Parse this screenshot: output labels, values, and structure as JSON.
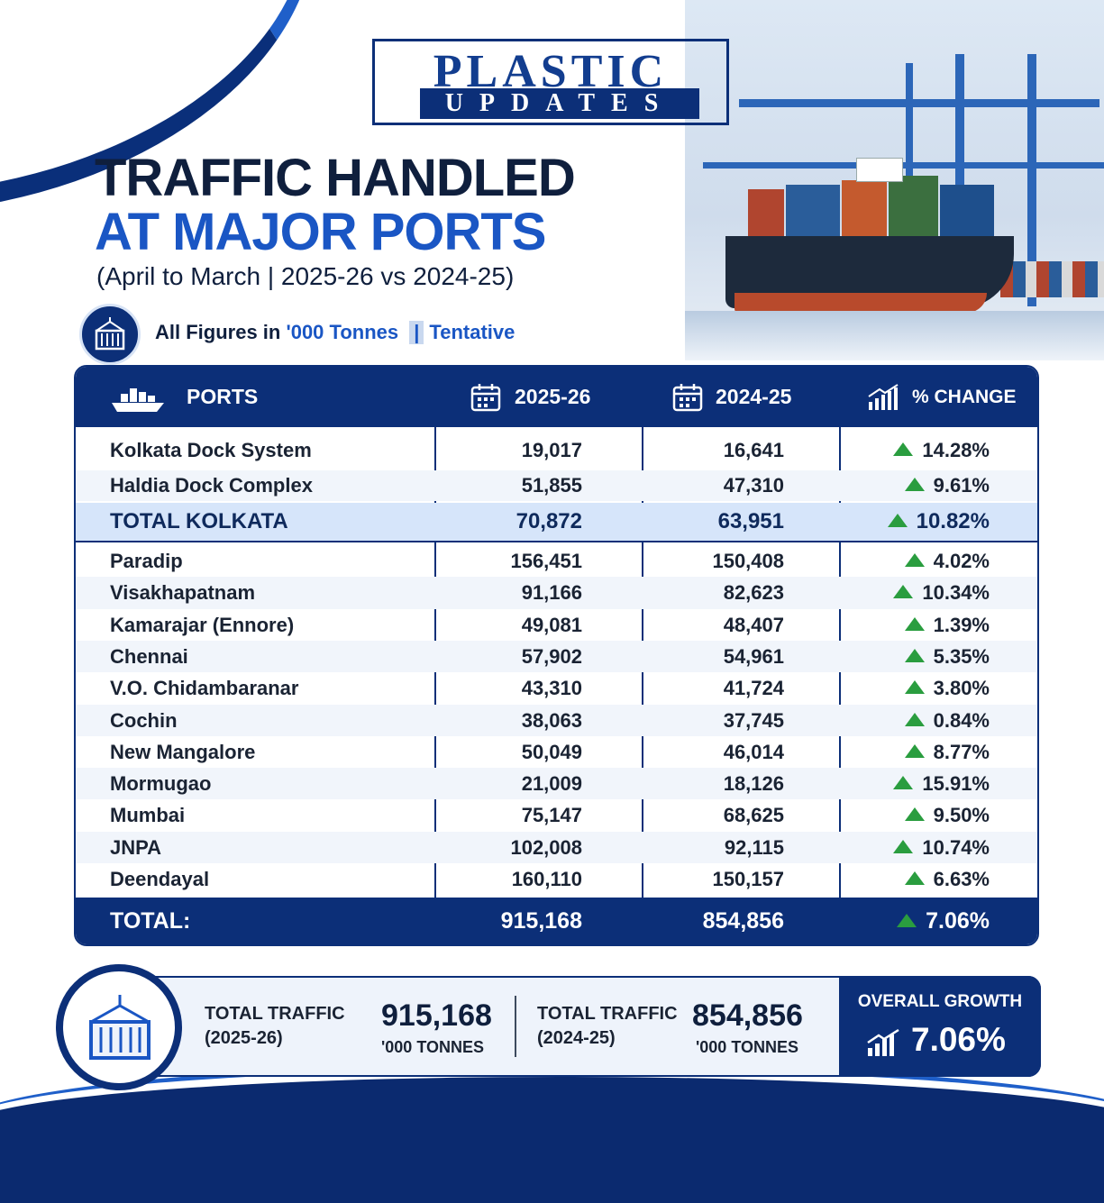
{
  "brand": {
    "top": "PLASTIC",
    "bottom": "UPDATES"
  },
  "header": {
    "title_line1": "TRAFFIC HANDLED",
    "title_line2": "AT MAJOR PORTS",
    "subtitle": "(April to March | 2025-26 vs 2024-25)"
  },
  "note": {
    "prefix": "All Figures in",
    "unit": "'000 Tonnes",
    "separator": "|",
    "status": "Tentative"
  },
  "table": {
    "headers": {
      "ports": "PORTS",
      "y1": "2025-26",
      "y2": "2024-25",
      "change": "% CHANGE"
    },
    "group1": [
      {
        "port": "Kolkata Dock System",
        "y1": "19,017",
        "y2": "16,641",
        "change": "14.28%"
      },
      {
        "port": "Haldia Dock Complex",
        "y1": "51,855",
        "y2": "47,310",
        "change": "9.61%"
      }
    ],
    "subtotal": {
      "port": "TOTAL KOLKATA",
      "y1": "70,872",
      "y2": "63,951",
      "change": "10.82%"
    },
    "group2": [
      {
        "port": "Paradip",
        "y1": "156,451",
        "y2": "150,408",
        "change": "4.02%"
      },
      {
        "port": "Visakhapatnam",
        "y1": "91,166",
        "y2": "82,623",
        "change": "10.34%"
      },
      {
        "port": "Kamarajar (Ennore)",
        "y1": "49,081",
        "y2": "48,407",
        "change": "1.39%"
      },
      {
        "port": "Chennai",
        "y1": "57,902",
        "y2": "54,961",
        "change": "5.35%"
      },
      {
        "port": "V.O. Chidambaranar",
        "y1": "43,310",
        "y2": "41,724",
        "change": "3.80%"
      },
      {
        "port": "Cochin",
        "y1": "38,063",
        "y2": "37,745",
        "change": "0.84%"
      },
      {
        "port": "New Mangalore",
        "y1": "50,049",
        "y2": "46,014",
        "change": "8.77%"
      },
      {
        "port": "Mormugao",
        "y1": "21,009",
        "y2": "18,126",
        "change": "15.91%"
      },
      {
        "port": "Mumbai",
        "y1": "75,147",
        "y2": "68,625",
        "change": "9.50%"
      },
      {
        "port": "JNPA",
        "y1": "102,008",
        "y2": "92,115",
        "change": "10.74%"
      },
      {
        "port": "Deendayal",
        "y1": "160,110",
        "y2": "150,157",
        "change": "6.63%"
      }
    ],
    "total": {
      "port": "TOTAL:",
      "y1": "915,168",
      "y2": "854,856",
      "change": "7.06%"
    },
    "up_color": "#2a9d3f"
  },
  "summary": {
    "left_label1": "TOTAL TRAFFIC",
    "left_label2": "(2025-26)",
    "left_value": "915,168",
    "left_unit": "'000 TONNES",
    "right_label1": "TOTAL TRAFFIC",
    "right_label2": "(2024-25)",
    "right_value": "854,856",
    "right_unit": "'000 TONNES",
    "growth_label": "OVERALL GROWTH",
    "growth_value": "7.06%"
  },
  "colors": {
    "navy": "#0c2f78",
    "accent": "#1a56c4"
  }
}
